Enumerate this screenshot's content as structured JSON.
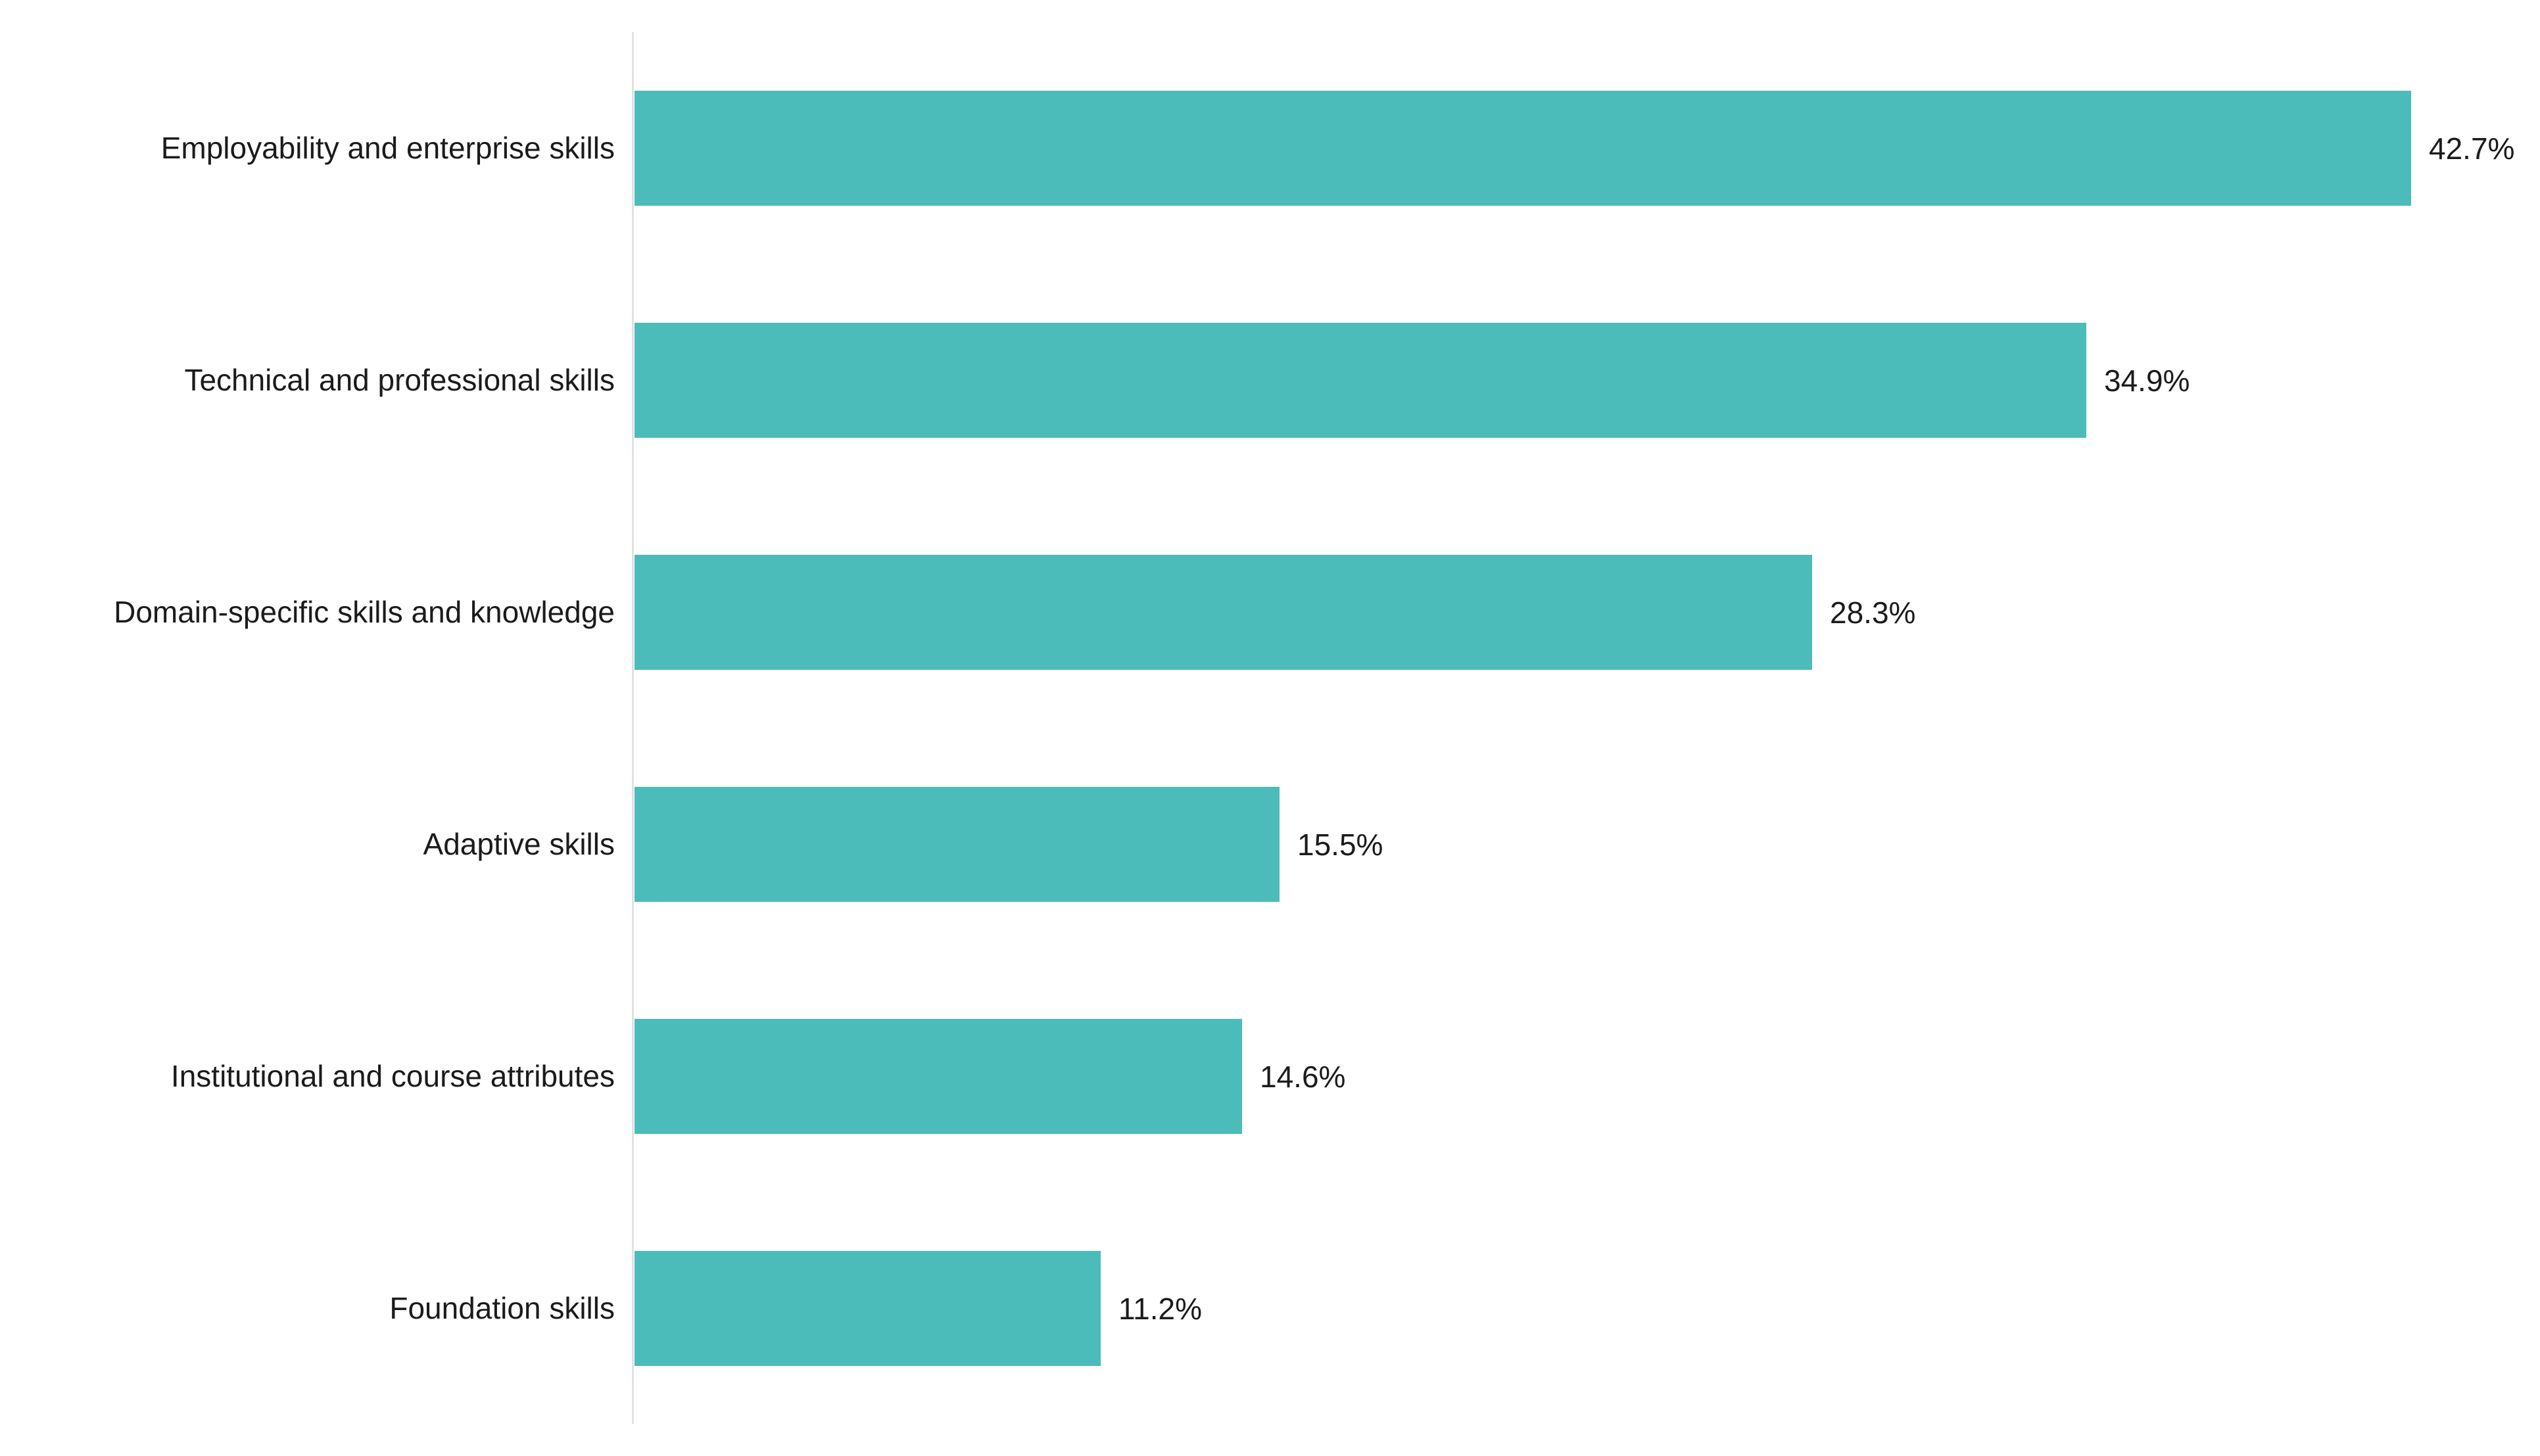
{
  "chart_data": {
    "type": "bar",
    "orientation": "horizontal",
    "title": "",
    "xlabel": "",
    "ylabel": "",
    "categories": [
      "Employability and enterprise skills",
      "Technical and professional skills",
      "Domain-specific skills and knowledge",
      "Adaptive skills",
      "Institutional and course attributes",
      "Foundation skills"
    ],
    "values": [
      42.7,
      34.9,
      28.3,
      15.5,
      14.6,
      11.2
    ],
    "value_labels": [
      "42.7%",
      "34.9%",
      "28.3%",
      "15.5%",
      "14.6%",
      "11.2%"
    ],
    "xlim": [
      0,
      45.8
    ],
    "grid": false,
    "legend_position": "none",
    "colors": {
      "bar": "#4bbcb9",
      "axis_line": "#e1e1e1",
      "text": "#1b1b1b",
      "background": "#ffffff"
    }
  }
}
